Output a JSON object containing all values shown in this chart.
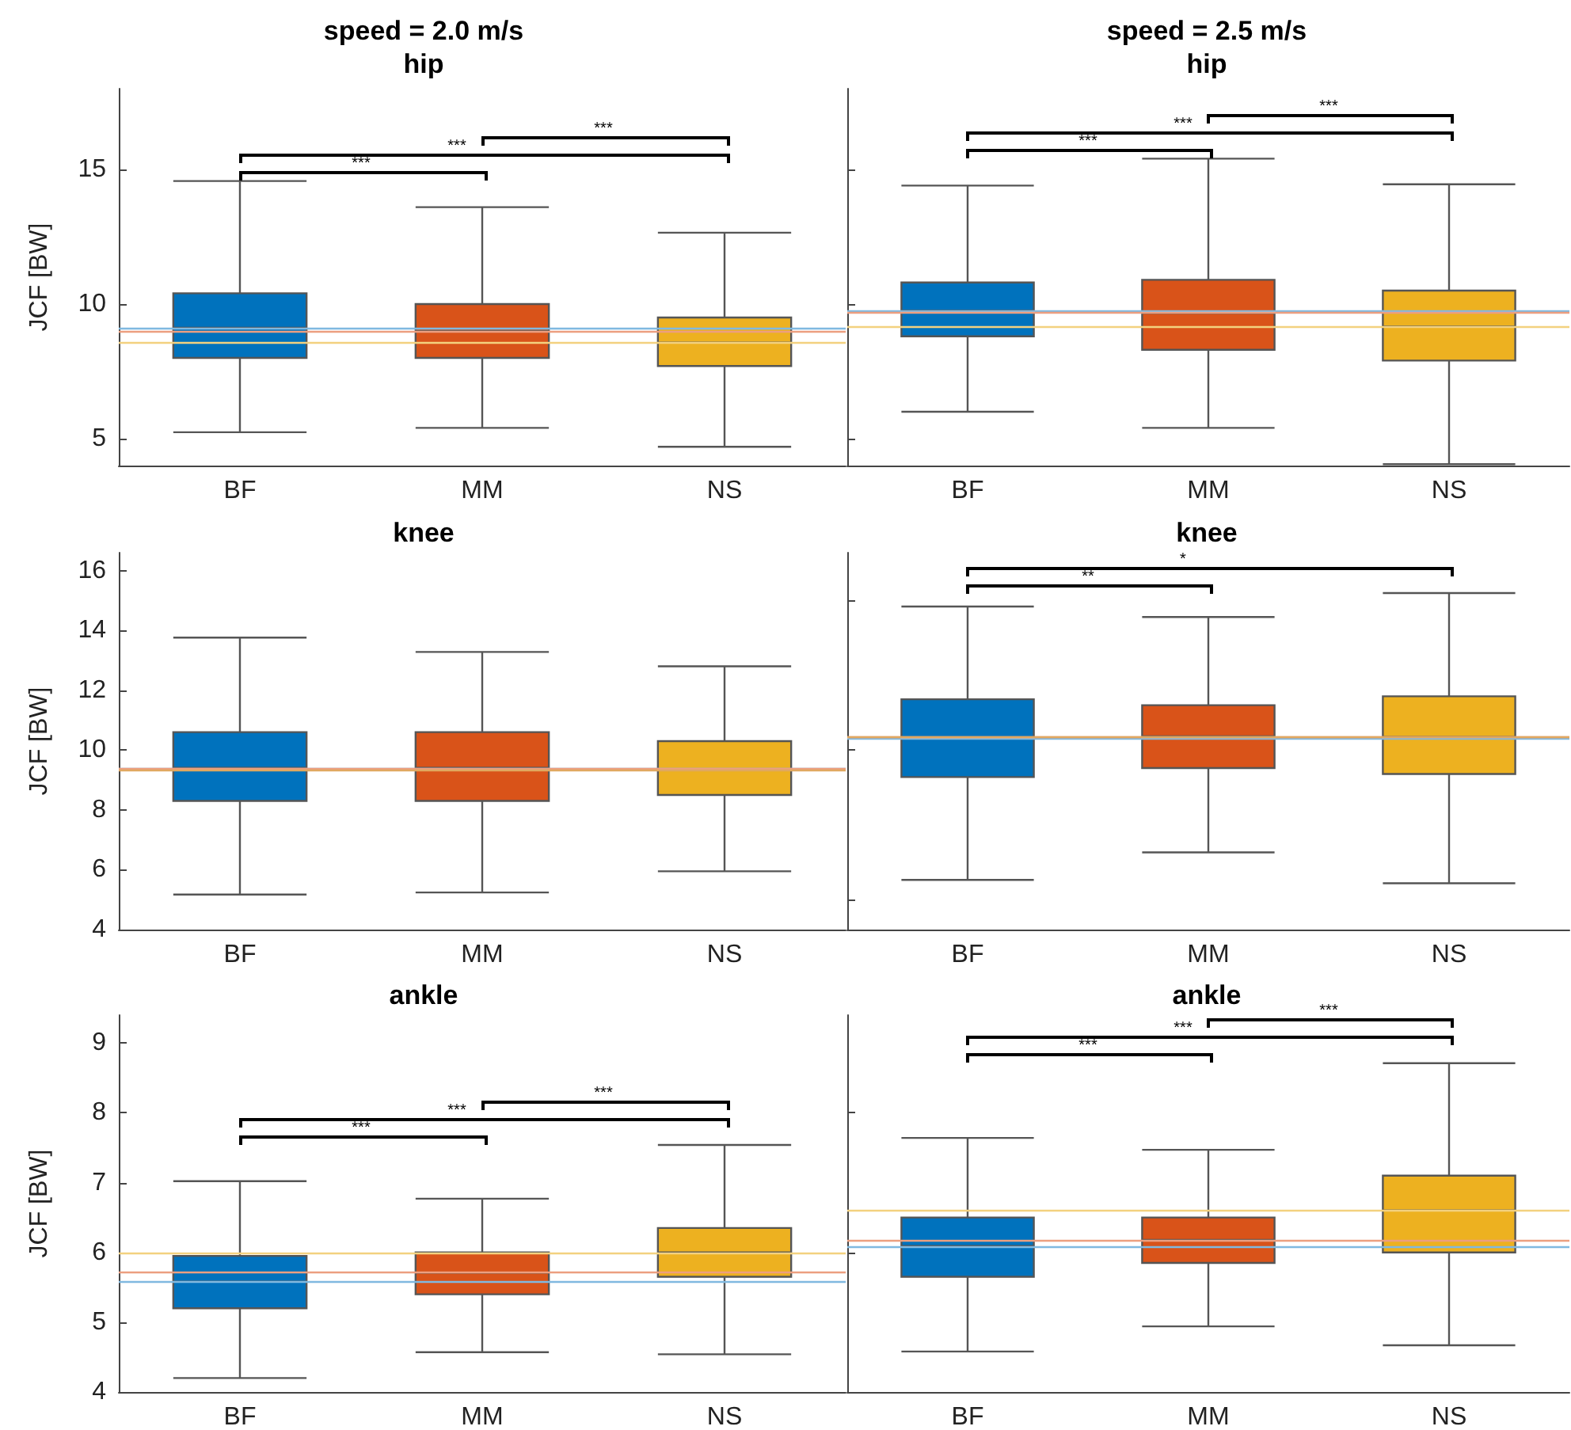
{
  "chart_data": [
    {
      "type": "box",
      "title": "speed = 2.0 m/s",
      "subtitle": "hip",
      "ylabel": "JCF [BW]",
      "categories": [
        "BF",
        "MM",
        "NS"
      ],
      "colors": [
        "#0072bd",
        "#d95319",
        "#edb120"
      ],
      "boxes": [
        {
          "low": 5.24,
          "q1": 8.0,
          "median": 9.12,
          "q3": 10.4,
          "high": 14.57
        },
        {
          "low": 5.4,
          "q1": 8.0,
          "median": 9.0,
          "q3": 10.0,
          "high": 13.6
        },
        {
          "low": 4.7,
          "q1": 7.7,
          "median": 8.57,
          "q3": 9.5,
          "high": 12.65
        }
      ],
      "ylim": [
        4,
        18
      ],
      "yticks": [
        5,
        10,
        15
      ],
      "ref_lines": [
        {
          "axis": "y",
          "value": 9.12,
          "color": "#80b9e0"
        },
        {
          "axis": "y",
          "value": 9.0,
          "color": "#ec9f80"
        },
        {
          "axis": "y",
          "value": 8.57,
          "color": "#f3d17f"
        }
      ],
      "annotations": [
        "***",
        "***",
        "***"
      ]
    },
    {
      "type": "box",
      "title": "speed = 2.5 m/s",
      "subtitle": "hip",
      "categories": [
        "BF",
        "MM",
        "NS"
      ],
      "colors": [
        "#0072bd",
        "#d95319",
        "#edb120"
      ],
      "boxes": [
        {
          "low": 6.0,
          "q1": 8.8,
          "median": 9.75,
          "q3": 10.8,
          "high": 14.4
        },
        {
          "low": 5.4,
          "q1": 8.3,
          "median": 9.67,
          "q3": 10.9,
          "high": 15.4
        },
        {
          "low": 4.05,
          "q1": 7.9,
          "median": 9.16,
          "q3": 10.5,
          "high": 14.45
        }
      ],
      "ylim": [
        4,
        18
      ],
      "yticks": [
        5,
        10,
        15
      ],
      "tick_labels": "x",
      "ref_lines": [
        {
          "axis": "y",
          "value": 9.75,
          "color": "#80b9e0"
        },
        {
          "axis": "y",
          "value": 9.67,
          "color": "#ec9f80"
        },
        {
          "axis": "y",
          "value": 9.16,
          "color": "#f3d17f"
        }
      ],
      "annotations": [
        "***",
        "***",
        "***"
      ]
    },
    {
      "type": "box",
      "title": "knee",
      "ylabel": "JCF [BW]",
      "categories": [
        "BF",
        "MM",
        "NS"
      ],
      "colors": [
        "#0072bd",
        "#d95319",
        "#edb120"
      ],
      "boxes": [
        {
          "low": 5.17,
          "q1": 8.3,
          "median": 9.41,
          "q3": 10.6,
          "high": 13.76
        },
        {
          "low": 5.24,
          "q1": 8.3,
          "median": 9.41,
          "q3": 10.6,
          "high": 13.28
        },
        {
          "low": 5.95,
          "q1": 8.5,
          "median": 9.36,
          "q3": 10.3,
          "high": 12.8
        }
      ],
      "ylim": [
        4,
        16.6
      ],
      "yticks": [
        4,
        6,
        8,
        10,
        12,
        14,
        16
      ],
      "ref_lines": [
        {
          "axis": "y",
          "value": 9.41,
          "color": "#80b9e0"
        },
        {
          "axis": "y",
          "value": 9.41,
          "color": "#ec9f80"
        },
        {
          "axis": "y",
          "value": 9.36,
          "color": "#e0a860"
        }
      ]
    },
    {
      "type": "box",
      "title": "knee",
      "categories": [
        "BF",
        "MM",
        "NS"
      ],
      "colors": [
        "#0072bd",
        "#d95319",
        "#edb120"
      ],
      "boxes": [
        {
          "low": 5.66,
          "q1": 9.1,
          "median": 10.41,
          "q3": 11.7,
          "high": 14.8
        },
        {
          "low": 6.58,
          "q1": 9.4,
          "median": 10.46,
          "q3": 11.5,
          "high": 14.45
        },
        {
          "low": 5.55,
          "q1": 9.2,
          "median": 10.44,
          "q3": 11.8,
          "high": 15.25
        }
      ],
      "ylim": [
        4,
        16.6
      ],
      "yticks": [
        5,
        10,
        15
      ],
      "tick_labels": "x",
      "ref_lines": [
        {
          "axis": "y",
          "value": 10.41,
          "color": "#80b9e0"
        },
        {
          "axis": "y",
          "value": 10.46,
          "color": "#ec9f80"
        },
        {
          "axis": "y",
          "value": 10.44,
          "color": "#e0a860"
        }
      ],
      "annotations": [
        "**",
        "*"
      ]
    },
    {
      "type": "box",
      "title": "ankle",
      "ylabel": "JCF [BW]",
      "categories": [
        "BF",
        "MM",
        "NS"
      ],
      "colors": [
        "#0072bd",
        "#d95319",
        "#edb120"
      ],
      "boxes": [
        {
          "low": 4.2,
          "q1": 5.2,
          "median": 5.58,
          "q3": 5.95,
          "high": 7.02
        },
        {
          "low": 4.57,
          "q1": 5.4,
          "median": 5.71,
          "q3": 6.0,
          "high": 6.77
        },
        {
          "low": 4.54,
          "q1": 5.65,
          "median": 6.0,
          "q3": 6.35,
          "high": 7.54
        }
      ],
      "ylim": [
        4,
        9.4
      ],
      "yticks": [
        4,
        5,
        6,
        7,
        8,
        9
      ],
      "ref_lines": [
        {
          "axis": "y",
          "value": 5.58,
          "color": "#80b9e0"
        },
        {
          "axis": "y",
          "value": 5.71,
          "color": "#ec9f80"
        },
        {
          "axis": "y",
          "value": 6.0,
          "color": "#f3d17f"
        }
      ],
      "annotations": [
        "***",
        "***",
        "***"
      ]
    },
    {
      "type": "box",
      "title": "ankle",
      "categories": [
        "BF",
        "MM",
        "NS"
      ],
      "colors": [
        "#0072bd",
        "#d95319",
        "#edb120"
      ],
      "boxes": [
        {
          "low": 4.58,
          "q1": 5.65,
          "median": 6.09,
          "q3": 6.5,
          "high": 7.64
        },
        {
          "low": 4.94,
          "q1": 5.85,
          "median": 6.18,
          "q3": 6.5,
          "high": 7.47
        },
        {
          "low": 4.67,
          "q1": 6.0,
          "median": 6.6,
          "q3": 7.1,
          "high": 8.71
        }
      ],
      "ylim": [
        4,
        9.4
      ],
      "yticks": [
        4,
        6,
        8
      ],
      "tick_labels": "x",
      "ref_lines": [
        {
          "axis": "y",
          "value": 6.09,
          "color": "#80b9e0"
        },
        {
          "axis": "y",
          "value": 6.18,
          "color": "#ec9f80"
        },
        {
          "axis": "y",
          "value": 6.6,
          "color": "#f3d17f"
        }
      ],
      "annotations": [
        "***",
        "***",
        "***"
      ]
    }
  ]
}
